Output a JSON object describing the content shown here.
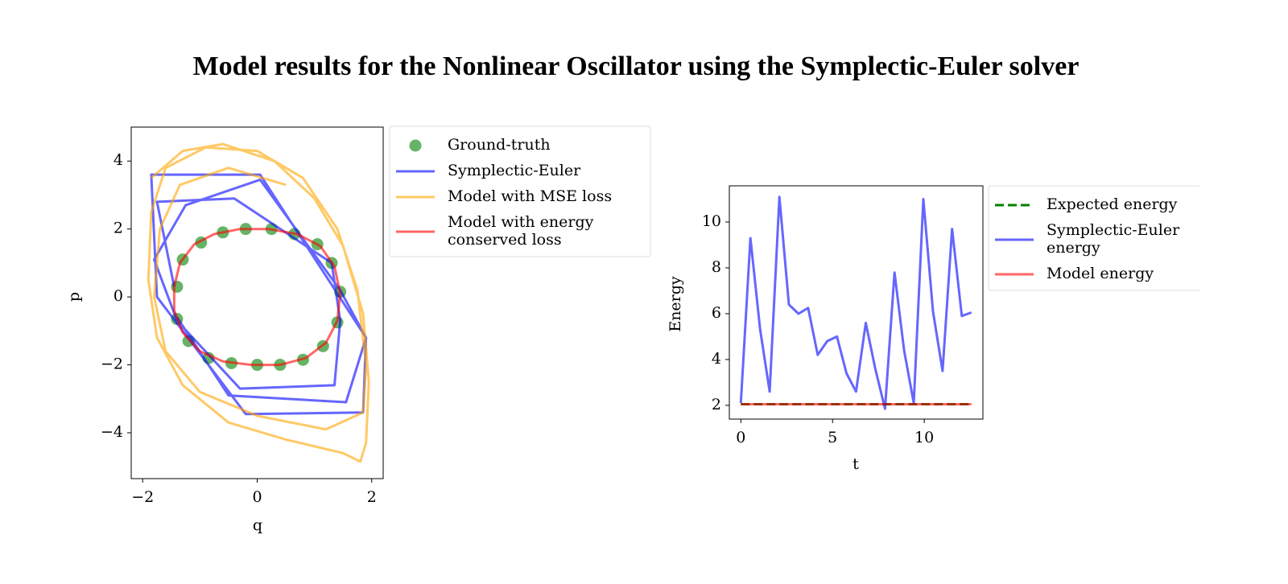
{
  "title": "Model results for the Nonlinear Oscillator using the Symplectic-Euler solver",
  "chart_data": [
    {
      "type": "line",
      "xlabel": "q",
      "ylabel": "p",
      "xlim": [
        -2.2,
        2.2
      ],
      "ylim": [
        -5.35,
        5.0
      ],
      "xticks": [
        {
          "value": -2,
          "label": "−2"
        },
        0,
        2
      ],
      "yticks": [
        {
          "value": -4,
          "label": "−4"
        },
        {
          "value": -2,
          "label": "−2"
        },
        0,
        2,
        4
      ],
      "alpha": 0.6,
      "series": [
        {
          "name": "Ground-truth",
          "kind": "scatter",
          "color": "#008000",
          "x": [
            -1.3,
            -0.98,
            -0.6,
            -0.2,
            0.25,
            0.65,
            1.05,
            1.3,
            1.45,
            1.4,
            1.15,
            0.8,
            0.4,
            0.0,
            -0.45,
            -0.85,
            -1.2,
            -1.4,
            -1.4
          ],
          "values": [
            1.1,
            1.6,
            1.9,
            2.0,
            2.0,
            1.85,
            1.55,
            1.0,
            0.15,
            -0.75,
            -1.45,
            -1.85,
            -2.0,
            -2.0,
            -1.95,
            -1.8,
            -1.3,
            -0.65,
            0.3
          ]
        },
        {
          "name": "Symplectic-Euler",
          "kind": "line",
          "color": "#0000ff",
          "x": [
            -1.45,
            -1.75,
            -0.4,
            1.3,
            1.45,
            1.35,
            -0.3,
            -1.4,
            -1.8,
            -1.25,
            0.05,
            1.45,
            1.9,
            1.85,
            -0.2,
            -1.75,
            -1.85,
            0.05,
            1.9,
            1.55,
            -0.5,
            -1.4
          ],
          "values": [
            0.3,
            2.8,
            2.9,
            1.0,
            -0.7,
            -2.6,
            -2.7,
            -0.7,
            1.1,
            2.7,
            3.45,
            0.2,
            -1.2,
            -3.4,
            -3.45,
            0.0,
            3.6,
            3.6,
            -1.2,
            -3.1,
            -2.9,
            -0.6
          ]
        },
        {
          "name": "Model with MSE loss",
          "kind": "line",
          "color": "#ffa500",
          "x": [
            -1.85,
            -1.3,
            -0.6,
            0.3,
            1.0,
            1.5,
            1.85,
            1.95,
            1.9,
            1.8,
            1.5,
            0.5,
            -0.5,
            -1.3,
            -1.75,
            -1.9,
            -1.85,
            -1.6,
            -0.9,
            0.0,
            0.8,
            1.4,
            1.75,
            1.9,
            1.85,
            1.2,
            0.0,
            -1.0,
            -1.6,
            -1.8,
            -1.7,
            -1.35,
            -0.5,
            0.5
          ],
          "values": [
            3.5,
            4.3,
            4.5,
            4.0,
            2.9,
            1.5,
            -0.5,
            -2.5,
            -4.3,
            -4.85,
            -4.6,
            -4.2,
            -3.7,
            -2.6,
            -1.2,
            0.5,
            2.5,
            3.8,
            4.4,
            4.3,
            3.5,
            2.0,
            0.2,
            -2.0,
            -3.4,
            -3.9,
            -3.5,
            -2.8,
            -1.6,
            0.0,
            2.0,
            3.3,
            3.8,
            3.3
          ]
        },
        {
          "name": "Model with energy\nconserved loss",
          "kind": "line",
          "color": "#ff0000",
          "x": [
            -1.45,
            -1.35,
            -1.1,
            -0.75,
            -0.3,
            0.2,
            0.7,
            1.1,
            1.35,
            1.45,
            1.4,
            1.2,
            0.85,
            0.4,
            -0.1,
            -0.6,
            -1.0,
            -1.3,
            -1.45,
            -1.45
          ],
          "values": [
            0.3,
            1.0,
            1.55,
            1.85,
            2.0,
            2.0,
            1.85,
            1.5,
            0.9,
            0.1,
            -0.7,
            -1.35,
            -1.8,
            -2.0,
            -2.0,
            -1.9,
            -1.6,
            -1.05,
            -0.4,
            0.3
          ]
        }
      ]
    },
    {
      "type": "line",
      "xlabel": "t",
      "ylabel": "Energy",
      "xlim": [
        -0.63,
        13.2
      ],
      "ylim": [
        1.4,
        11.58
      ],
      "xticks": [
        0,
        5,
        10
      ],
      "yticks": [
        2,
        4,
        6,
        8,
        10
      ],
      "alpha": 0.6,
      "series": [
        {
          "name": "Expected energy",
          "kind": "line",
          "dash": true,
          "color": "#008000",
          "alpha": 1,
          "x": [
            0,
            12.57
          ],
          "values": [
            2.05,
            2.05
          ]
        },
        {
          "name": "Symplectic-Euler\nenergy",
          "kind": "line",
          "color": "#0000ff",
          "x": [
            0,
            0.52,
            1.05,
            1.57,
            2.1,
            2.62,
            3.14,
            3.67,
            4.19,
            4.71,
            5.24,
            5.76,
            6.28,
            6.81,
            7.33,
            7.86,
            8.38,
            8.9,
            9.43,
            9.95,
            10.48,
            11.0,
            11.52,
            12.05,
            12.57
          ],
          "values": [
            2.1,
            9.3,
            5.3,
            2.6,
            11.1,
            6.4,
            6.0,
            6.25,
            4.2,
            4.8,
            5.0,
            3.4,
            2.6,
            5.6,
            3.6,
            1.85,
            7.8,
            4.4,
            2.1,
            11.0,
            6.1,
            3.5,
            9.7,
            5.9,
            6.05
          ]
        },
        {
          "name": "Model energy",
          "kind": "line",
          "color": "#ff0000",
          "x": [
            0,
            12.57
          ],
          "values": [
            2.05,
            2.05
          ]
        }
      ]
    }
  ]
}
